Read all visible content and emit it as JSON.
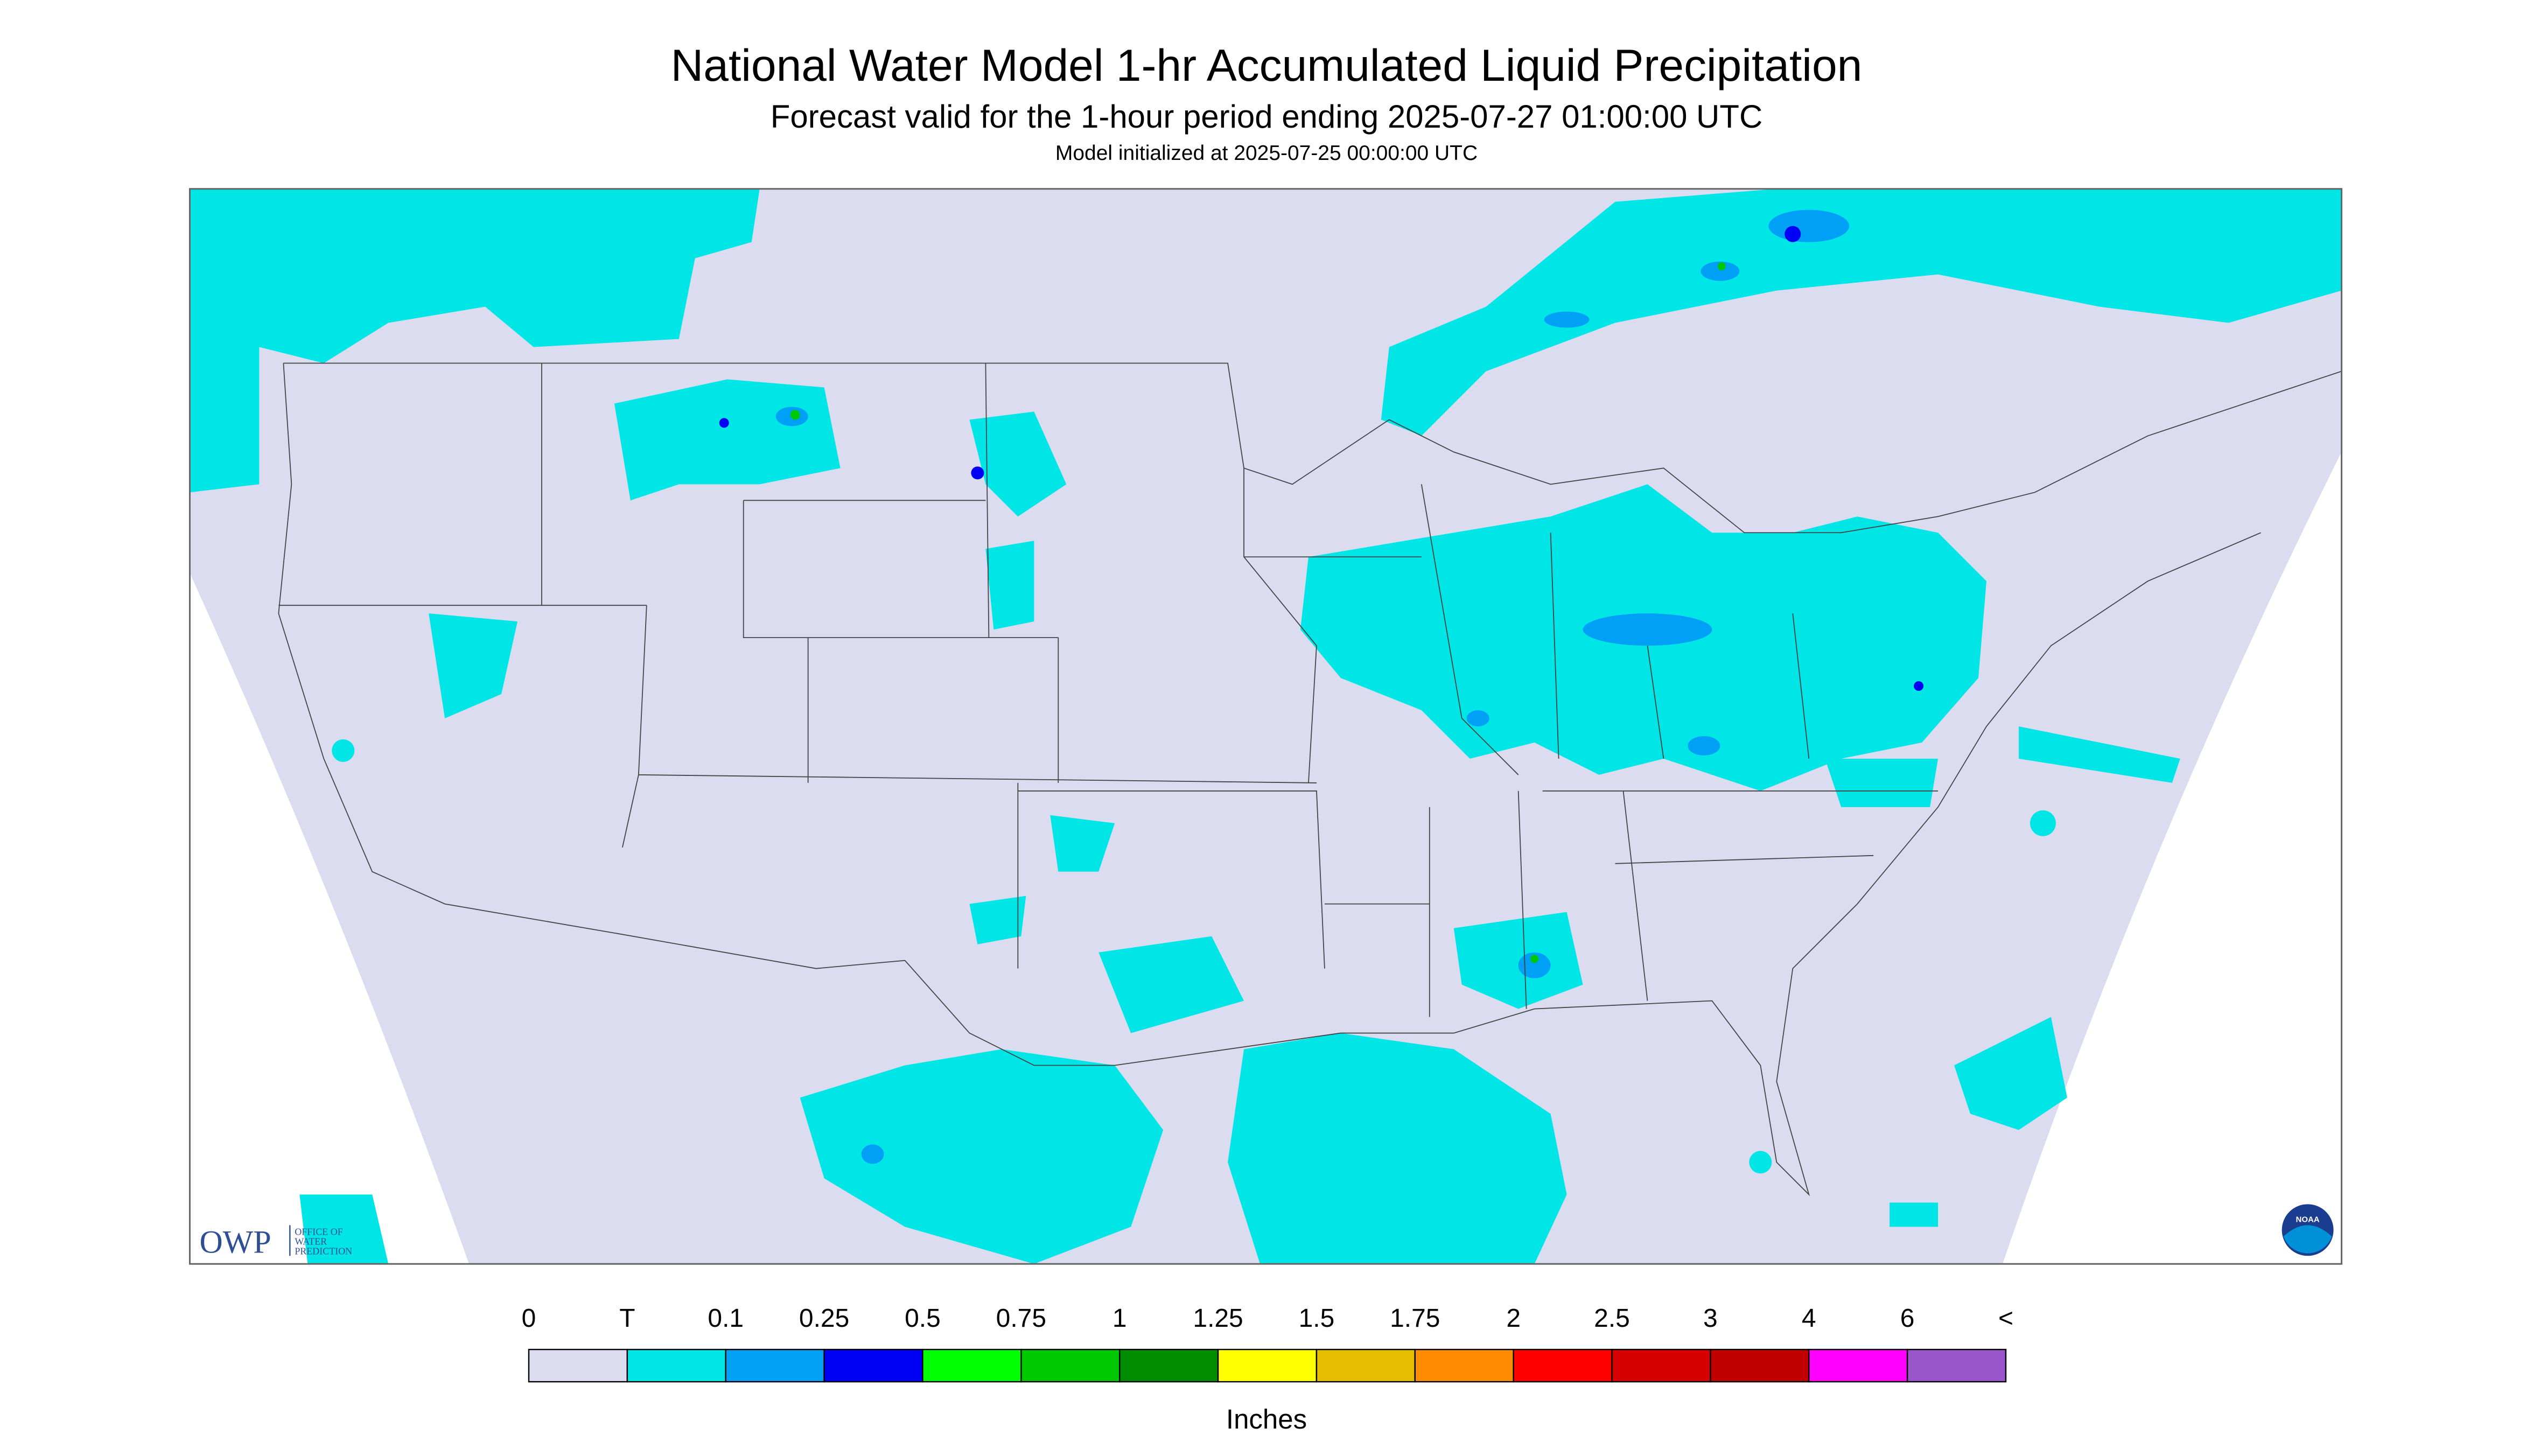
{
  "header": {
    "title": "National Water Model 1-hr Accumulated Liquid Precipitation",
    "subtitle": "Forecast valid for the 1-hour period ending 2025-07-27 01:00:00 UTC",
    "note": "Model initialized at 2025-07-25 00:00:00 UTC"
  },
  "logos": {
    "owp": "OWP",
    "owp_lines": [
      "OFFICE OF",
      "WATER",
      "PREDICTION"
    ],
    "noaa": "NOAA"
  },
  "legend": {
    "labels": [
      "0",
      "T",
      "0.1",
      "0.25",
      "0.5",
      "0.75",
      "1",
      "1.25",
      "1.5",
      "1.75",
      "2",
      "2.5",
      "3",
      "4",
      "6",
      "<"
    ],
    "colors": [
      "#dcdcf0",
      "#00e6e6",
      "#00a0f6",
      "#0000f5",
      "#00ff00",
      "#00c800",
      "#008c00",
      "#ffff00",
      "#e6be00",
      "#ff8c00",
      "#ff0000",
      "#d60000",
      "#c00000",
      "#ff00ff",
      "#9955c9"
    ],
    "units": "Inches"
  }
}
